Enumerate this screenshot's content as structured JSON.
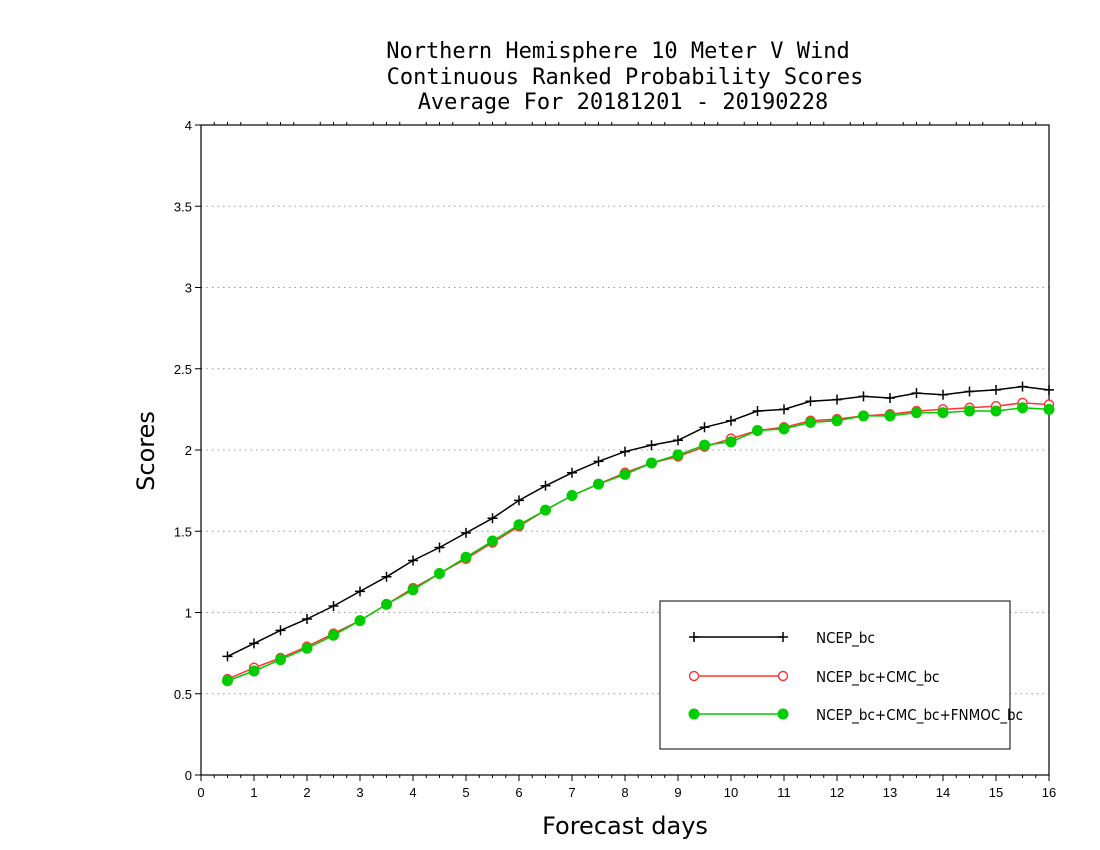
{
  "chart_data": {
    "type": "line",
    "title_lines": [
      "Northern Hemisphere 10 Meter V Wind",
      "Continuous Ranked Probability Scores",
      "Average For 20181201 - 20190228"
    ],
    "xlabel": "Forecast days",
    "ylabel": "Scores",
    "xlim": [
      0,
      16
    ],
    "ylim": [
      0,
      4
    ],
    "xticks": [
      "0",
      "1",
      "2",
      "3",
      "4",
      "5",
      "6",
      "7",
      "8",
      "9",
      "10",
      "11",
      "12",
      "13",
      "14",
      "15",
      "16"
    ],
    "yticks": [
      "0",
      "0.5",
      "1",
      "1.5",
      "2",
      "2.5",
      "3",
      "3.5",
      "4"
    ],
    "grid": "horizontal dotted",
    "legend_position": "bottom-right",
    "x": [
      0.5,
      1,
      1.5,
      2,
      2.5,
      3,
      3.5,
      4,
      4.5,
      5,
      5.5,
      6,
      6.5,
      7,
      7.5,
      8,
      8.5,
      9,
      9.5,
      10,
      10.5,
      11,
      11.5,
      12,
      12.5,
      13,
      13.5,
      14,
      14.5,
      15,
      15.5,
      16
    ],
    "series": [
      {
        "name": "NCEP_bc",
        "color": "#000000",
        "marker": "plus",
        "values": [
          0.73,
          0.81,
          0.89,
          0.96,
          1.04,
          1.13,
          1.22,
          1.32,
          1.4,
          1.49,
          1.58,
          1.69,
          1.78,
          1.86,
          1.93,
          1.99,
          2.03,
          2.06,
          2.14,
          2.18,
          2.24,
          2.25,
          2.3,
          2.31,
          2.33,
          2.32,
          2.35,
          2.34,
          2.36,
          2.37,
          2.39,
          2.37
        ]
      },
      {
        "name": "NCEP_bc+CMC_bc",
        "color": "#ff3333",
        "marker": "open-circle",
        "values": [
          0.59,
          0.66,
          0.72,
          0.79,
          0.87,
          0.95,
          1.05,
          1.15,
          1.24,
          1.33,
          1.43,
          1.53,
          1.63,
          1.72,
          1.79,
          1.86,
          1.92,
          1.96,
          2.02,
          2.07,
          2.12,
          2.14,
          2.18,
          2.19,
          2.21,
          2.22,
          2.24,
          2.25,
          2.26,
          2.27,
          2.29,
          2.28
        ]
      },
      {
        "name": "NCEP_bc+CMC_bc+FNMOC_bc",
        "color": "#00cc00",
        "marker": "filled-circle",
        "values": [
          0.58,
          0.64,
          0.71,
          0.78,
          0.86,
          0.95,
          1.05,
          1.14,
          1.24,
          1.34,
          1.44,
          1.54,
          1.63,
          1.72,
          1.79,
          1.85,
          1.92,
          1.97,
          2.03,
          2.05,
          2.12,
          2.13,
          2.17,
          2.18,
          2.21,
          2.21,
          2.23,
          2.23,
          2.24,
          2.24,
          2.26,
          2.25
        ]
      }
    ]
  }
}
